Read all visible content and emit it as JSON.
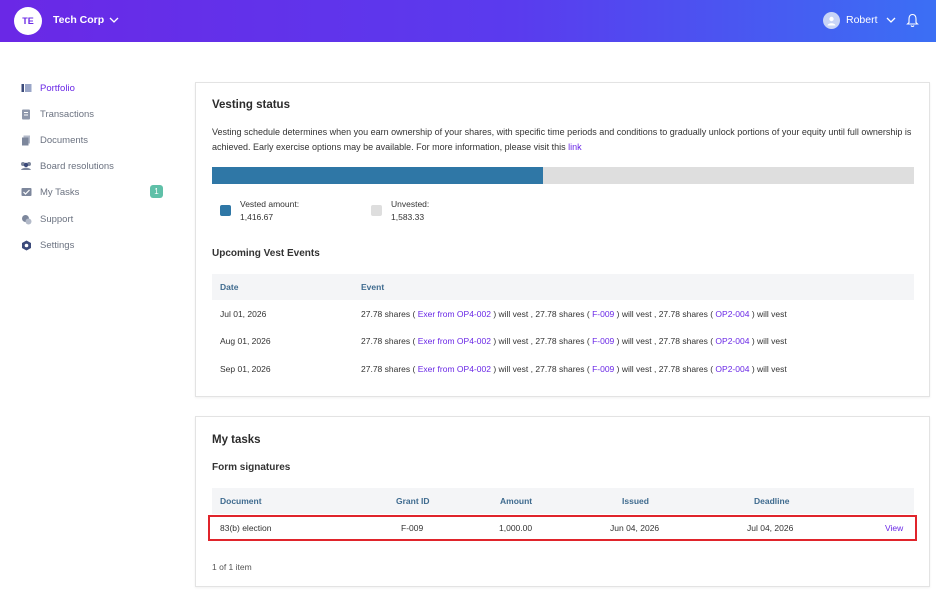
{
  "header": {
    "org_initials": "TE",
    "org_name": "Tech Corp",
    "user_name": "Robert"
  },
  "sidebar": {
    "items": [
      {
        "label": "Portfolio",
        "icon": "portfolio-icon",
        "active": true
      },
      {
        "label": "Transactions",
        "icon": "transactions-icon"
      },
      {
        "label": "Documents",
        "icon": "documents-icon"
      },
      {
        "label": "Board resolutions",
        "icon": "board-icon"
      },
      {
        "label": "My Tasks",
        "icon": "tasks-icon",
        "badge": "1"
      },
      {
        "label": "Support",
        "icon": "support-icon"
      },
      {
        "label": "Settings",
        "icon": "settings-icon"
      }
    ]
  },
  "vesting": {
    "title": "Vesting status",
    "description": "Vesting schedule determines when you earn ownership of your shares, with specific time periods and conditions to gradually unlock portions of your equity until full ownership is achieved. Early exercise options may be available. For more information, please visit this ",
    "link_label": "link",
    "vested_label": "Vested amount:",
    "vested_value": "1,416.67",
    "unvested_label": "Unvested:",
    "unvested_value": "1,583.33",
    "vested_fraction": 0.472,
    "colors": {
      "vested": "#2f77a6",
      "unvested": "#dedede"
    }
  },
  "upcoming": {
    "title": "Upcoming Vest Events",
    "columns": [
      "Date",
      "Event"
    ],
    "rows": [
      {
        "date": "Jul 01, 2026",
        "p1": "27.78 shares (",
        "l1": "Exer from OP4-002",
        "p2": ") will vest , 27.78 shares (",
        "l2": "F-009",
        "p3": ") will vest , 27.78 shares (",
        "l3": "OP2-004",
        "p4": ") will vest"
      },
      {
        "date": "Aug 01, 2026",
        "p1": "27.78 shares (",
        "l1": "Exer from OP4-002",
        "p2": ") will vest , 27.78 shares (",
        "l2": "F-009",
        "p3": ") will vest , 27.78 shares (",
        "l3": "OP2-004",
        "p4": ") will vest"
      },
      {
        "date": "Sep 01, 2026",
        "p1": "27.78 shares (",
        "l1": "Exer from OP4-002",
        "p2": ") will vest , 27.78 shares (",
        "l2": "F-009",
        "p3": ") will vest , 27.78 shares (",
        "l3": "OP2-004",
        "p4": ") will vest"
      }
    ]
  },
  "tasks": {
    "title": "My tasks",
    "subtitle": "Form signatures",
    "columns": {
      "document": "Document",
      "grant_id": "Grant ID",
      "amount": "Amount",
      "issued": "Issued",
      "deadline": "Deadline"
    },
    "row": {
      "document": "83(b) election",
      "grant_id": "F-009",
      "amount": "1,000.00",
      "issued": "Jun 04, 2026",
      "deadline": "Jul 04, 2026",
      "action": "View"
    },
    "pager": "1 of 1 item"
  }
}
